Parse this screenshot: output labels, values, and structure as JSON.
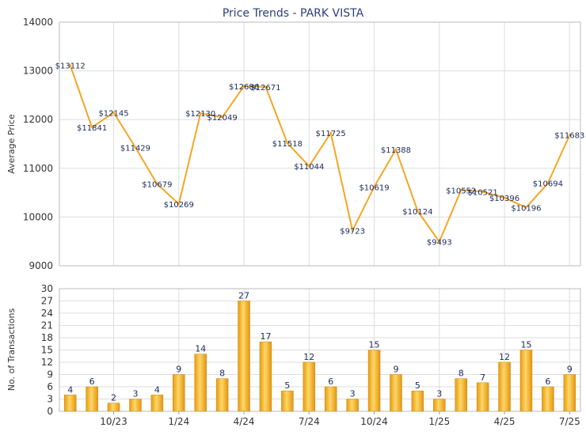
{
  "chart_data": [
    {
      "type": "line",
      "title": "Price Trends - PARK VISTA",
      "ylabel": "Average Price",
      "ylim": [
        9000,
        14000
      ],
      "yticks": [
        9000,
        10000,
        11000,
        12000,
        13000,
        14000
      ],
      "grid": true,
      "line_color": "#f5a623",
      "x": [
        "8/23",
        "9/23",
        "10/23",
        "11/23",
        "12/23",
        "1/24",
        "2/24",
        "3/24",
        "4/24",
        "5/24",
        "6/24",
        "7/24",
        "8/24",
        "9/24",
        "10/24",
        "11/24",
        "12/24",
        "1/25",
        "2/25",
        "3/25",
        "4/25",
        "5/25",
        "6/25",
        "7/25"
      ],
      "values": [
        13112,
        11841,
        12145,
        11429,
        10679,
        10269,
        12130,
        12049,
        12686,
        12671,
        11518,
        11044,
        11725,
        9723,
        10619,
        11388,
        10124,
        9493,
        10552,
        10521,
        10396,
        10196,
        10694,
        11683
      ],
      "labels": [
        "$13112",
        "$11841",
        "$12145",
        "$11429",
        "$10679",
        "$10269",
        "$12130",
        "$12049",
        "$12686",
        "$12671",
        "$11518",
        "$11044",
        "$11725",
        "$9723",
        "$10619",
        "$11388",
        "$10124",
        "$9493",
        "$10552",
        "$10521",
        "$10396",
        "$10196",
        "$10694",
        "$11683"
      ]
    },
    {
      "type": "bar",
      "ylabel": "No. of Transactions",
      "ylim": [
        0,
        30
      ],
      "yticks": [
        0,
        3,
        6,
        9,
        12,
        15,
        18,
        21,
        24,
        27,
        30
      ],
      "grid": true,
      "bar_color": "#f5b324",
      "categories": [
        "8/23",
        "9/23",
        "10/23",
        "11/23",
        "12/23",
        "1/24",
        "2/24",
        "3/24",
        "4/24",
        "5/24",
        "6/24",
        "7/24",
        "8/24",
        "9/24",
        "10/24",
        "11/24",
        "12/24",
        "1/25",
        "2/25",
        "3/25",
        "4/25",
        "5/25",
        "6/25",
        "7/25"
      ],
      "values": [
        4,
        6,
        2,
        3,
        4,
        9,
        14,
        8,
        27,
        17,
        5,
        12,
        6,
        3,
        15,
        9,
        5,
        3,
        8,
        7,
        12,
        15,
        6,
        9
      ],
      "xtick_labels": [
        "10/23",
        "1/24",
        "4/24",
        "7/24",
        "10/24",
        "1/25",
        "4/25",
        "7/25"
      ],
      "xtick_categories": [
        "10/23",
        "1/24",
        "4/24",
        "7/24",
        "10/24",
        "1/25",
        "4/25",
        "7/25"
      ]
    }
  ]
}
